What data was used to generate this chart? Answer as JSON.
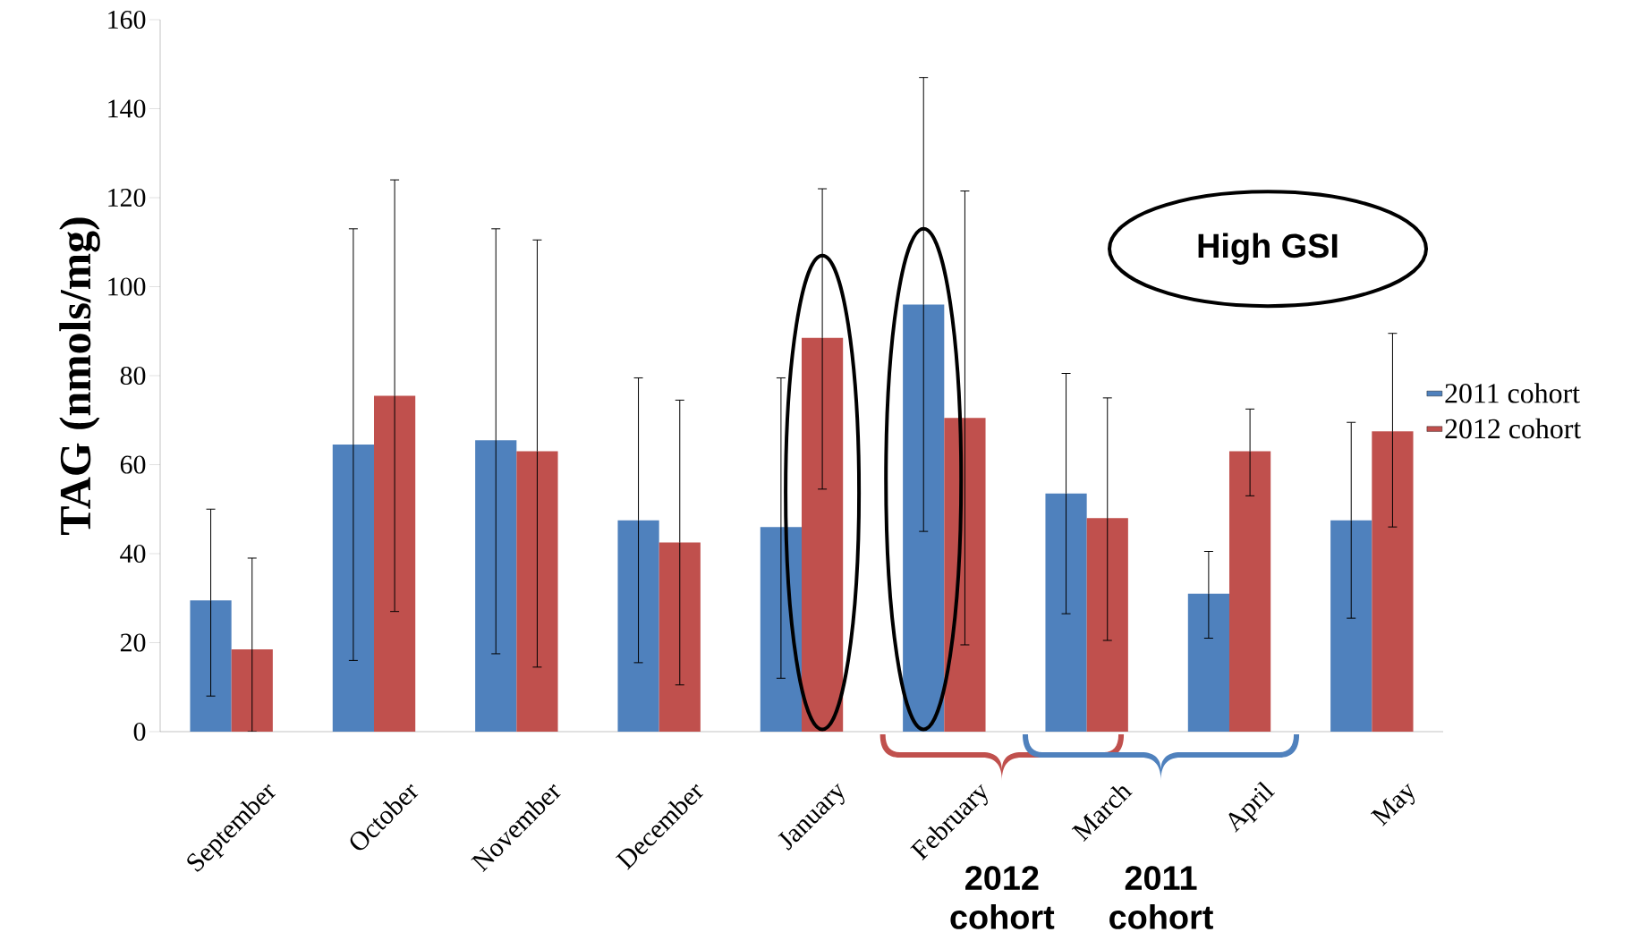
{
  "chart_data": {
    "type": "bar",
    "ylabel": "TAG (nmols/mg)",
    "categories": [
      "September",
      "October",
      "November",
      "December",
      "January",
      "February",
      "March",
      "April",
      "May"
    ],
    "series": [
      {
        "name": "2011 cohort",
        "color": "#4f81bd",
        "values": [
          29.5,
          64.5,
          65.5,
          47.5,
          46,
          96,
          53.5,
          31,
          47.5
        ],
        "errors": [
          [
            8,
            50
          ],
          [
            16,
            113
          ],
          [
            17.5,
            113
          ],
          [
            15.5,
            79.5
          ],
          [
            12,
            79.5
          ],
          [
            45,
            147
          ],
          [
            26.5,
            80.5
          ],
          [
            21,
            40.5
          ],
          [
            25.5,
            69.5
          ]
        ]
      },
      {
        "name": "2012 cohort",
        "color": "#c0504d",
        "values": [
          18.5,
          75.5,
          63,
          42.5,
          88.5,
          70.5,
          48,
          63,
          67.5
        ],
        "errors": [
          [
            0,
            39
          ],
          [
            27,
            124
          ],
          [
            14.5,
            110.5
          ],
          [
            10.5,
            74.5
          ],
          [
            54.5,
            122
          ],
          [
            19.5,
            121.5
          ],
          [
            20.5,
            75
          ],
          [
            53,
            72.5
          ],
          [
            46,
            89.5
          ]
        ]
      }
    ],
    "ylim": [
      0,
      160
    ],
    "yticks": [
      0,
      20,
      40,
      60,
      80,
      100,
      120,
      140,
      160
    ],
    "legend": "right",
    "grid": false,
    "annotations": [
      "High GSI",
      "2012 cohort",
      "2011 cohort"
    ]
  }
}
